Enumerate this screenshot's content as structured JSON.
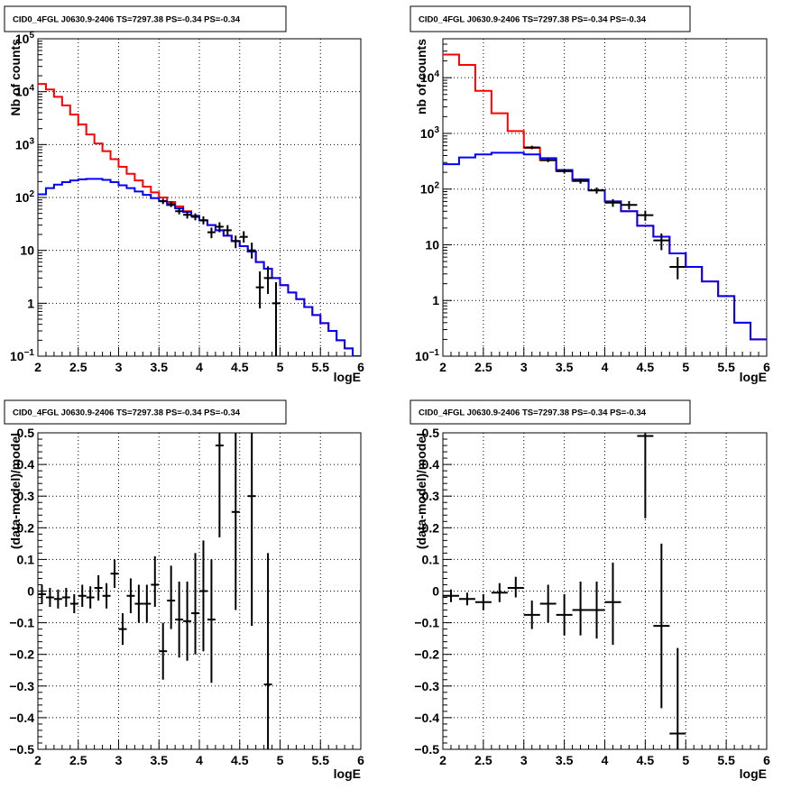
{
  "chart_data": [
    {
      "type": "line",
      "title": "CID0_4FGL J0630.9-2406 TS=7297.38 PS=-0.34 PS=-0.34",
      "xlabel": "logE",
      "ylabel": "Nb of counts",
      "yscale": "log",
      "xlim": [
        2,
        6
      ],
      "ylim": [
        0.1,
        100000
      ],
      "grid": true,
      "x_ticks": [
        "2",
        "2.5",
        "3",
        "3.5",
        "4",
        "4.5",
        "5",
        "5.5",
        "6"
      ],
      "y_ticks": [
        {
          "value": 0.1,
          "base": "10",
          "exp": "−1"
        },
        {
          "value": 1,
          "label": "1"
        },
        {
          "value": 10,
          "label": "10"
        },
        {
          "value": 100,
          "base": "10",
          "exp": "2"
        },
        {
          "value": 1000,
          "base": "10",
          "exp": "3"
        },
        {
          "value": 10000,
          "base": "10",
          "exp": "4"
        },
        {
          "value": 100000,
          "base": "10",
          "exp": "5"
        }
      ],
      "series": [
        {
          "kind": "step",
          "color": "#ff0000",
          "edges_x": [
            2.0,
            2.1,
            2.2,
            2.3,
            2.4,
            2.5,
            2.6,
            2.7,
            2.8,
            2.9,
            3.0,
            3.1,
            3.2,
            3.3,
            3.4,
            3.5,
            3.6,
            3.7,
            3.8,
            3.9,
            4.0,
            4.1,
            4.2,
            4.3,
            4.4,
            4.5,
            4.6,
            4.7,
            4.8,
            4.9,
            5.0,
            5.1,
            5.2,
            5.3,
            5.4,
            5.5,
            5.6,
            5.7,
            5.8,
            5.9
          ],
          "values": [
            14000,
            11000,
            8000,
            5500,
            3700,
            2400,
            1550,
            1050,
            750,
            530,
            380,
            280,
            210,
            160,
            125,
            100,
            82,
            68,
            55,
            45,
            37,
            30,
            24,
            19,
            15,
            12,
            9.5,
            6,
            4.5,
            3,
            2.2,
            1.6,
            1.2,
            0.85,
            0.6,
            0.42,
            0.3,
            0.2,
            0.14,
            0.1
          ]
        },
        {
          "kind": "step",
          "color": "#0000ff",
          "edges_x": [
            2.0,
            2.1,
            2.2,
            2.3,
            2.4,
            2.5,
            2.6,
            2.7,
            2.8,
            2.9,
            3.0,
            3.1,
            3.2,
            3.3,
            3.4,
            3.5,
            3.6,
            3.7,
            3.8,
            3.9,
            4.0,
            4.1,
            4.2,
            4.3,
            4.4,
            4.5,
            4.6,
            4.7,
            4.8,
            4.9,
            5.0,
            5.1,
            5.2,
            5.3,
            5.4,
            5.5,
            5.6,
            5.7,
            5.8,
            5.9
          ],
          "values": [
            115,
            150,
            175,
            195,
            210,
            220,
            225,
            225,
            215,
            195,
            170,
            150,
            130,
            112,
            97,
            85,
            72,
            62,
            53,
            45,
            37,
            30,
            24,
            19,
            15,
            12,
            9.5,
            6,
            4.5,
            3,
            2.2,
            1.6,
            1.2,
            0.85,
            0.6,
            0.42,
            0.3,
            0.2,
            0.14,
            0.1
          ]
        },
        {
          "kind": "errorbar",
          "color": "#000000",
          "points": [
            {
              "x": 3.55,
              "y": 85,
              "xerr": 0.05,
              "lo": 75,
              "hi": 95
            },
            {
              "x": 3.65,
              "y": 75,
              "xerr": 0.05,
              "lo": 66,
              "hi": 85
            },
            {
              "x": 3.75,
              "y": 55,
              "xerr": 0.05,
              "lo": 48,
              "hi": 63
            },
            {
              "x": 3.85,
              "y": 47,
              "xerr": 0.05,
              "lo": 40,
              "hi": 54
            },
            {
              "x": 3.95,
              "y": 43,
              "xerr": 0.05,
              "lo": 37,
              "hi": 50
            },
            {
              "x": 4.05,
              "y": 37,
              "xerr": 0.05,
              "lo": 31,
              "hi": 44
            },
            {
              "x": 4.15,
              "y": 22,
              "xerr": 0.05,
              "lo": 17,
              "hi": 27
            },
            {
              "x": 4.25,
              "y": 28,
              "xerr": 0.05,
              "lo": 22,
              "hi": 34
            },
            {
              "x": 4.35,
              "y": 24,
              "xerr": 0.05,
              "lo": 19,
              "hi": 30
            },
            {
              "x": 4.45,
              "y": 15,
              "xerr": 0.05,
              "lo": 11,
              "hi": 19
            },
            {
              "x": 4.55,
              "y": 18,
              "xerr": 0.05,
              "lo": 14,
              "hi": 23
            },
            {
              "x": 4.65,
              "y": 10,
              "xerr": 0.05,
              "lo": 7,
              "hi": 14
            },
            {
              "x": 4.75,
              "y": 2,
              "xerr": 0.05,
              "lo": 0.8,
              "hi": 4
            },
            {
              "x": 4.85,
              "y": 3,
              "xerr": 0.05,
              "lo": 1.5,
              "hi": 5
            },
            {
              "x": 4.95,
              "y": 1,
              "xerr": 0.05,
              "lo": 0.1,
              "hi": 2.5
            }
          ]
        }
      ]
    },
    {
      "type": "line",
      "title": "CID0_4FGL J0630.9-2406 TS=7297.38 PS=-0.34 PS=-0.34",
      "xlabel": "logE",
      "ylabel": "nb of counts",
      "yscale": "log",
      "xlim": [
        2,
        6
      ],
      "ylim": [
        0.1,
        50000
      ],
      "grid": true,
      "x_ticks": [
        "2",
        "2.5",
        "3",
        "3.5",
        "4",
        "4.5",
        "5",
        "5.5",
        "6"
      ],
      "y_ticks": [
        {
          "value": 0.1,
          "base": "10",
          "exp": "−1"
        },
        {
          "value": 1,
          "label": "1"
        },
        {
          "value": 10,
          "label": "10"
        },
        {
          "value": 100,
          "base": "10",
          "exp": "2"
        },
        {
          "value": 1000,
          "base": "10",
          "exp": "3"
        },
        {
          "value": 10000,
          "base": "10",
          "exp": "4"
        }
      ],
      "series": [
        {
          "kind": "step",
          "color": "#ff0000",
          "edges_x": [
            2.0,
            2.2,
            2.4,
            2.6,
            2.8,
            3.0,
            3.2,
            3.4,
            3.6,
            3.8,
            4.0,
            4.2,
            4.4,
            4.6,
            4.8,
            5.0,
            5.2,
            5.4,
            5.6,
            5.8
          ],
          "values": [
            26000,
            17000,
            5800,
            2300,
            1100,
            550,
            330,
            210,
            140,
            95,
            60,
            40,
            22,
            14,
            7,
            4,
            2.2,
            1.2,
            0.4,
            0.2
          ]
        },
        {
          "kind": "step",
          "color": "#0000ff",
          "edges_x": [
            2.0,
            2.2,
            2.4,
            2.6,
            2.8,
            3.0,
            3.2,
            3.4,
            3.6,
            3.8,
            4.0,
            4.2,
            4.4,
            4.6,
            4.8,
            5.0,
            5.2,
            5.4,
            5.6,
            5.8
          ],
          "values": [
            280,
            370,
            420,
            450,
            450,
            420,
            360,
            220,
            150,
            95,
            60,
            40,
            22,
            14,
            7,
            4,
            2.2,
            1.2,
            0.4,
            0.2
          ]
        },
        {
          "kind": "errorbar",
          "color": "#000000",
          "points": [
            {
              "x": 3.1,
              "y": 560,
              "xerr": 0.1,
              "lo": 520,
              "hi": 600
            },
            {
              "x": 3.3,
              "y": 330,
              "xerr": 0.1,
              "lo": 305,
              "hi": 355
            },
            {
              "x": 3.5,
              "y": 210,
              "xerr": 0.1,
              "lo": 190,
              "hi": 230
            },
            {
              "x": 3.7,
              "y": 140,
              "xerr": 0.1,
              "lo": 125,
              "hi": 155
            },
            {
              "x": 3.9,
              "y": 95,
              "xerr": 0.1,
              "lo": 83,
              "hi": 107
            },
            {
              "x": 4.1,
              "y": 57,
              "xerr": 0.1,
              "lo": 48,
              "hi": 66
            },
            {
              "x": 4.3,
              "y": 52,
              "xerr": 0.1,
              "lo": 43,
              "hi": 61
            },
            {
              "x": 4.5,
              "y": 34,
              "xerr": 0.1,
              "lo": 27,
              "hi": 41
            },
            {
              "x": 4.7,
              "y": 12,
              "xerr": 0.1,
              "lo": 8,
              "hi": 16
            },
            {
              "x": 4.9,
              "y": 4,
              "xerr": 0.1,
              "lo": 2.4,
              "hi": 6
            }
          ]
        }
      ]
    },
    {
      "type": "scatter",
      "title": "CID0_4FGL J0630.9-2406 TS=7297.38 PS=-0.34 PS=-0.34",
      "xlabel": "logE",
      "ylabel": "(data-model)/model",
      "yscale": "linear",
      "xlim": [
        2,
        6
      ],
      "ylim": [
        -0.5,
        0.5
      ],
      "grid": true,
      "x_ticks": [
        "2",
        "2.5",
        "3",
        "3.5",
        "4",
        "4.5",
        "5",
        "5.5",
        "6"
      ],
      "y_ticks": [
        {
          "value": -0.5,
          "label": "−0.5"
        },
        {
          "value": -0.4,
          "label": "−0.4"
        },
        {
          "value": -0.3,
          "label": "−0.3"
        },
        {
          "value": -0.2,
          "label": "−0.2"
        },
        {
          "value": -0.1,
          "label": "−0.1"
        },
        {
          "value": 0,
          "label": "0"
        },
        {
          "value": 0.1,
          "label": "0.1"
        },
        {
          "value": 0.2,
          "label": "0.2"
        },
        {
          "value": 0.3,
          "label": "0.3"
        },
        {
          "value": 0.4,
          "label": "0.4"
        },
        {
          "value": 0.5,
          "label": "0.5"
        }
      ],
      "series": [
        {
          "kind": "errorbar",
          "color": "#000000",
          "points": [
            {
              "x": 2.05,
              "y": -0.01,
              "xerr": 0.05,
              "lo": -0.04,
              "hi": 0.02
            },
            {
              "x": 2.15,
              "y": -0.02,
              "xerr": 0.05,
              "lo": -0.05,
              "hi": 0.01
            },
            {
              "x": 2.25,
              "y": -0.025,
              "xerr": 0.05,
              "lo": -0.055,
              "hi": 0.005
            },
            {
              "x": 2.35,
              "y": -0.02,
              "xerr": 0.05,
              "lo": -0.05,
              "hi": 0.01
            },
            {
              "x": 2.45,
              "y": -0.04,
              "xerr": 0.05,
              "lo": -0.07,
              "hi": -0.01
            },
            {
              "x": 2.55,
              "y": -0.015,
              "xerr": 0.05,
              "lo": -0.05,
              "hi": 0.02
            },
            {
              "x": 2.65,
              "y": -0.02,
              "xerr": 0.05,
              "lo": -0.055,
              "hi": 0.015
            },
            {
              "x": 2.75,
              "y": 0.01,
              "xerr": 0.05,
              "lo": -0.03,
              "hi": 0.05
            },
            {
              "x": 2.85,
              "y": -0.015,
              "xerr": 0.05,
              "lo": -0.055,
              "hi": 0.025
            },
            {
              "x": 2.95,
              "y": 0.055,
              "xerr": 0.05,
              "lo": 0.01,
              "hi": 0.1
            },
            {
              "x": 3.05,
              "y": -0.12,
              "xerr": 0.05,
              "lo": -0.17,
              "hi": -0.07
            },
            {
              "x": 3.15,
              "y": -0.015,
              "xerr": 0.05,
              "lo": -0.07,
              "hi": 0.04
            },
            {
              "x": 3.25,
              "y": -0.04,
              "xerr": 0.05,
              "lo": -0.1,
              "hi": 0.02
            },
            {
              "x": 3.35,
              "y": -0.04,
              "xerr": 0.05,
              "lo": -0.1,
              "hi": 0.02
            },
            {
              "x": 3.45,
              "y": 0.02,
              "xerr": 0.05,
              "lo": -0.05,
              "hi": 0.11
            },
            {
              "x": 3.55,
              "y": -0.19,
              "xerr": 0.05,
              "lo": -0.28,
              "hi": -0.1
            },
            {
              "x": 3.65,
              "y": -0.03,
              "xerr": 0.05,
              "lo": -0.12,
              "hi": 0.08
            },
            {
              "x": 3.75,
              "y": -0.09,
              "xerr": 0.05,
              "lo": -0.21,
              "hi": 0.03
            },
            {
              "x": 3.85,
              "y": -0.095,
              "xerr": 0.05,
              "lo": -0.22,
              "hi": 0.03
            },
            {
              "x": 3.95,
              "y": -0.07,
              "xerr": 0.05,
              "lo": -0.2,
              "hi": 0.12
            },
            {
              "x": 4.05,
              "y": 0.0,
              "xerr": 0.05,
              "lo": -0.19,
              "hi": 0.16
            },
            {
              "x": 4.15,
              "y": -0.09,
              "xerr": 0.05,
              "lo": -0.29,
              "hi": 0.1
            },
            {
              "x": 4.25,
              "y": 0.46,
              "xerr": 0.05,
              "lo": 0.17,
              "hi": 0.5
            },
            {
              "x": 4.45,
              "y": 0.25,
              "xerr": 0.05,
              "lo": -0.06,
              "hi": 0.5
            },
            {
              "x": 4.65,
              "y": 0.3,
              "xerr": 0.05,
              "lo": -0.11,
              "hi": 0.5
            },
            {
              "x": 4.85,
              "y": -0.295,
              "xerr": 0.05,
              "lo": -0.5,
              "hi": 0.12
            }
          ]
        }
      ]
    },
    {
      "type": "scatter",
      "title": "CID0_4FGL J0630.9-2406 TS=7297.38 PS=-0.34 PS=-0.34",
      "xlabel": "logE",
      "ylabel": "(data-model)/model",
      "yscale": "linear",
      "xlim": [
        2,
        6
      ],
      "ylim": [
        -0.5,
        0.5
      ],
      "grid": true,
      "x_ticks": [
        "2",
        "2.5",
        "3",
        "3.5",
        "4",
        "4.5",
        "5",
        "5.5",
        "6"
      ],
      "y_ticks": [
        {
          "value": -0.5,
          "label": "−0.5"
        },
        {
          "value": -0.4,
          "label": "−0.4"
        },
        {
          "value": -0.3,
          "label": "−0.3"
        },
        {
          "value": -0.2,
          "label": "−0.2"
        },
        {
          "value": -0.1,
          "label": "−0.1"
        },
        {
          "value": 0,
          "label": "0"
        },
        {
          "value": 0.1,
          "label": "0.1"
        },
        {
          "value": 0.2,
          "label": "0.2"
        },
        {
          "value": 0.3,
          "label": "0.3"
        },
        {
          "value": 0.4,
          "label": "0.4"
        },
        {
          "value": 0.5,
          "label": "0.5"
        }
      ],
      "series": [
        {
          "kind": "errorbar",
          "color": "#000000",
          "points": [
            {
              "x": 2.1,
              "y": -0.015,
              "xerr": 0.1,
              "lo": -0.035,
              "hi": 0.005
            },
            {
              "x": 2.3,
              "y": -0.025,
              "xerr": 0.1,
              "lo": -0.045,
              "hi": -0.005
            },
            {
              "x": 2.5,
              "y": -0.035,
              "xerr": 0.1,
              "lo": -0.06,
              "hi": -0.01
            },
            {
              "x": 2.7,
              "y": -0.005,
              "xerr": 0.1,
              "lo": -0.035,
              "hi": 0.025
            },
            {
              "x": 2.9,
              "y": 0.01,
              "xerr": 0.1,
              "lo": -0.02,
              "hi": 0.045
            },
            {
              "x": 3.1,
              "y": -0.075,
              "xerr": 0.1,
              "lo": -0.12,
              "hi": -0.03
            },
            {
              "x": 3.3,
              "y": -0.04,
              "xerr": 0.1,
              "lo": -0.1,
              "hi": 0.02
            },
            {
              "x": 3.5,
              "y": -0.075,
              "xerr": 0.1,
              "lo": -0.14,
              "hi": -0.01
            },
            {
              "x": 3.7,
              "y": -0.06,
              "xerr": 0.1,
              "lo": -0.14,
              "hi": 0.03
            },
            {
              "x": 3.9,
              "y": -0.06,
              "xerr": 0.1,
              "lo": -0.15,
              "hi": 0.03
            },
            {
              "x": 4.1,
              "y": -0.035,
              "xerr": 0.1,
              "lo": -0.17,
              "hi": 0.09
            },
            {
              "x": 4.5,
              "y": 0.49,
              "xerr": 0.1,
              "lo": 0.23,
              "hi": 0.5
            },
            {
              "x": 4.7,
              "y": -0.11,
              "xerr": 0.1,
              "lo": -0.37,
              "hi": 0.15
            },
            {
              "x": 4.9,
              "y": -0.45,
              "xerr": 0.1,
              "lo": -0.5,
              "hi": -0.18
            }
          ]
        }
      ]
    }
  ]
}
